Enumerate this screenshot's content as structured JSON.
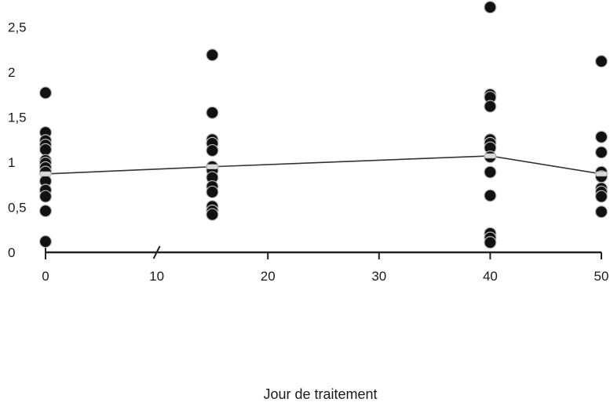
{
  "chart_data": {
    "type": "scatter",
    "title": "",
    "xlabel": "Jour de traitement",
    "ylabel": "",
    "xlim": [
      0,
      50
    ],
    "ylim": [
      0,
      2.8
    ],
    "xticks": [
      0,
      10,
      20,
      30,
      40,
      50
    ],
    "x_tick_labels": [
      "0",
      "10",
      "20",
      "30",
      "40",
      "50"
    ],
    "yticks": [
      0,
      0.5,
      1,
      1.5,
      2,
      2.5
    ],
    "y_tick_labels": [
      "0",
      "0,5",
      "1",
      "1,5",
      "2",
      "2,5"
    ],
    "x_axis_breaks": [
      10
    ],
    "grid": false,
    "legend": "none",
    "series": [
      {
        "type": "scatter",
        "color": "#111111",
        "points": [
          {
            "x": 0,
            "y": 1.77
          },
          {
            "x": 0,
            "y": 1.33
          },
          {
            "x": 0,
            "y": 1.24
          },
          {
            "x": 0,
            "y": 1.19
          },
          {
            "x": 0,
            "y": 1.14
          },
          {
            "x": 0,
            "y": 1.02
          },
          {
            "x": 0,
            "y": 0.99
          },
          {
            "x": 0,
            "y": 0.94
          },
          {
            "x": 0,
            "y": 0.89
          },
          {
            "x": 0,
            "y": 0.79
          },
          {
            "x": 0,
            "y": 0.69
          },
          {
            "x": 0,
            "y": 0.62
          },
          {
            "x": 0,
            "y": 0.46
          },
          {
            "x": 0,
            "y": 0.12
          },
          {
            "x": 15,
            "y": 2.19
          },
          {
            "x": 15,
            "y": 1.55
          },
          {
            "x": 15,
            "y": 1.25
          },
          {
            "x": 15,
            "y": 1.21
          },
          {
            "x": 15,
            "y": 1.13
          },
          {
            "x": 15,
            "y": 0.95
          },
          {
            "x": 15,
            "y": 0.91
          },
          {
            "x": 15,
            "y": 0.83
          },
          {
            "x": 15,
            "y": 0.73
          },
          {
            "x": 15,
            "y": 0.67
          },
          {
            "x": 15,
            "y": 0.51
          },
          {
            "x": 15,
            "y": 0.46
          },
          {
            "x": 15,
            "y": 0.42
          },
          {
            "x": 40,
            "y": 2.72
          },
          {
            "x": 40,
            "y": 1.75
          },
          {
            "x": 40,
            "y": 1.72
          },
          {
            "x": 40,
            "y": 1.62
          },
          {
            "x": 40,
            "y": 1.25
          },
          {
            "x": 40,
            "y": 1.21
          },
          {
            "x": 40,
            "y": 1.16
          },
          {
            "x": 40,
            "y": 1.06
          },
          {
            "x": 40,
            "y": 0.89
          },
          {
            "x": 40,
            "y": 0.63
          },
          {
            "x": 40,
            "y": 0.21
          },
          {
            "x": 40,
            "y": 0.16
          },
          {
            "x": 40,
            "y": 0.11
          },
          {
            "x": 50,
            "y": 2.12
          },
          {
            "x": 50,
            "y": 1.28
          },
          {
            "x": 50,
            "y": 1.11
          },
          {
            "x": 50,
            "y": 0.89
          },
          {
            "x": 50,
            "y": 0.84
          },
          {
            "x": 50,
            "y": 0.71
          },
          {
            "x": 50,
            "y": 0.67
          },
          {
            "x": 50,
            "y": 0.62
          },
          {
            "x": 50,
            "y": 0.45
          }
        ]
      },
      {
        "type": "line",
        "color": "#333333",
        "marker_color": "#d9d9d9",
        "points": [
          {
            "x": 0,
            "y": 0.87
          },
          {
            "x": 15,
            "y": 0.95
          },
          {
            "x": 40,
            "y": 1.07
          },
          {
            "x": 50,
            "y": 0.87
          }
        ]
      }
    ]
  }
}
